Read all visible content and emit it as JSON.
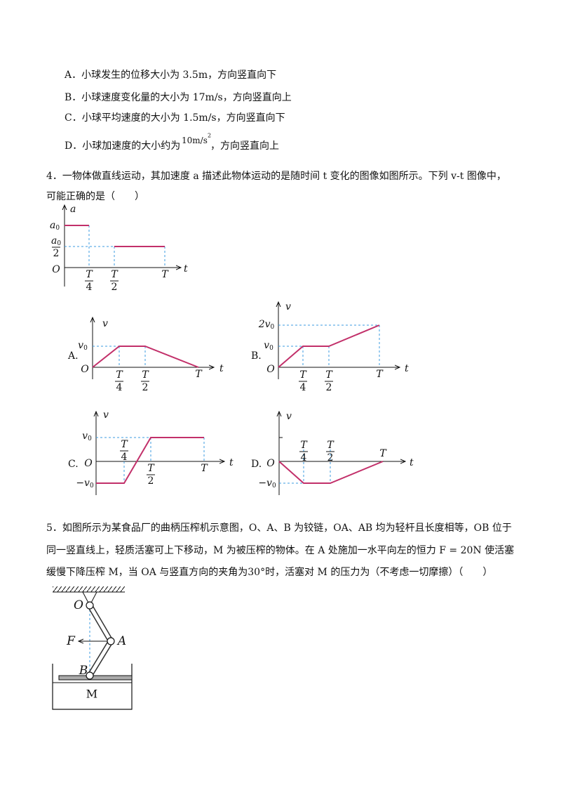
{
  "q3": {
    "options": [
      "A．小球发生的位移大小为 3.5m，方向竖直向下",
      "B．小球速度变化量的大小为 17m/s，方向竖直向上",
      "C．小球平均速度的大小为 1.5m/s，方向竖直向下"
    ],
    "option_d": {
      "prefix": "D．小球加速度的大小约为",
      "formula": "10m/s",
      "sup": "2",
      "suffix": "，方向竖直向上"
    }
  },
  "q4": {
    "lines": [
      "4．一物体做直线运动，其加速度 a 描述此物体运动的是随时间 t 变化的图像如图所示。下列 v-t 图像中，",
      "可能正确的是（　　）"
    ],
    "a_graph": {
      "axis_y": "a",
      "axis_x": "t",
      "origin": "O",
      "a0": "a",
      "a0_sub": "0",
      "half_num": "a",
      "half_num_sub": "0",
      "half_den": "2",
      "t1_num": "T",
      "t1_den": "4",
      "t2_num": "T",
      "t2_den": "2",
      "t_end": "T"
    },
    "options": [
      {
        "letter": "A.",
        "axis_y": "v",
        "axis_x": "t",
        "origin": "O",
        "v0": "v",
        "v0_sub": "0",
        "t1_num": "T",
        "t1_den": "4",
        "t2_num": "T",
        "t2_den": "2",
        "t_end": "T"
      },
      {
        "letter": "B.",
        "axis_y": "v",
        "axis_x": "t",
        "origin": "O",
        "v0": "v",
        "v0_sub": "0",
        "two_v0": "2v",
        "two_v0_sub": "0",
        "t1_num": "T",
        "t1_den": "4",
        "t2_num": "T",
        "t2_den": "2",
        "t_end": "T"
      },
      {
        "letter": "C.",
        "axis_y": "v",
        "axis_x": "t",
        "origin": "O",
        "v0": "v",
        "v0_sub": "0",
        "neg_v0": "−v",
        "neg_v0_sub": "0",
        "t1_num": "T",
        "t1_den": "4",
        "t2_num": "T",
        "t2_den": "2",
        "t_end": "T"
      },
      {
        "letter": "D.",
        "axis_y": "v",
        "axis_x": "t",
        "origin": "O",
        "neg_v0": "−v",
        "neg_v0_sub": "0",
        "t1_num": "T",
        "t1_den": "4",
        "t2_num": "T",
        "t2_den": "2",
        "t_end": "T"
      }
    ]
  },
  "q5": {
    "lines": [
      "5．如图所示为某食品厂的曲柄压榨机示意图，O、A、B 为铰链，OA、AB 均为轻杆且长度相等，OB 位于",
      "同一竖直线上，轻质活塞可上下移动，M 为被压榨的物体。在 A 处施加一水平向左的恒力 F = 20N 使活塞",
      "缓慢下降压榨 M，当 OA 与竖直方向的夹角为30°时，活塞对 M 的压力为（不考虑一切摩擦）（　　）"
    ],
    "diagram": {
      "O": "O",
      "A": "A",
      "B": "B",
      "F": "F",
      "M": "M"
    }
  }
}
